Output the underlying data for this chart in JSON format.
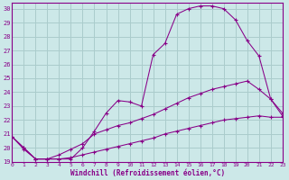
{
  "xlabel": "Windchill (Refroidissement éolien,°C)",
  "background_color": "#cce8e8",
  "grid_color": "#aacccc",
  "line_color": "#880088",
  "xlim": [
    0,
    23
  ],
  "ylim": [
    19,
    30.4
  ],
  "ytick_vals": [
    19,
    20,
    21,
    22,
    23,
    24,
    25,
    26,
    27,
    28,
    29,
    30
  ],
  "xtick_vals": [
    0,
    1,
    2,
    3,
    4,
    5,
    6,
    7,
    8,
    9,
    10,
    11,
    12,
    13,
    14,
    15,
    16,
    17,
    18,
    19,
    20,
    21,
    22,
    23
  ],
  "line1_x": [
    0,
    1,
    2,
    3,
    4,
    5,
    6,
    7,
    8,
    9,
    10,
    11,
    12,
    13,
    14,
    15,
    16,
    17,
    18,
    19,
    20,
    21,
    22,
    23
  ],
  "line1_y": [
    20.8,
    20.0,
    19.2,
    19.2,
    19.2,
    19.3,
    19.5,
    19.7,
    19.9,
    20.1,
    20.3,
    20.5,
    20.7,
    21.0,
    21.2,
    21.4,
    21.6,
    21.8,
    22.0,
    22.1,
    22.2,
    22.3,
    22.2,
    22.2
  ],
  "line2_x": [
    0,
    1,
    2,
    3,
    4,
    5,
    6,
    7,
    8,
    9,
    10,
    11,
    12,
    13,
    14,
    15,
    16,
    17,
    18,
    19,
    20,
    21,
    22,
    23
  ],
  "line2_y": [
    20.8,
    20.0,
    19.2,
    19.2,
    19.5,
    19.9,
    20.3,
    21.0,
    21.3,
    21.6,
    21.8,
    22.1,
    22.4,
    22.8,
    23.2,
    23.6,
    23.9,
    24.2,
    24.4,
    24.6,
    24.8,
    24.2,
    23.5,
    22.5
  ],
  "line3_x": [
    0,
    1,
    2,
    3,
    4,
    5,
    6,
    7,
    8,
    9,
    10,
    11,
    12,
    13,
    14,
    15,
    16,
    17,
    18,
    19,
    20,
    21,
    22,
    23
  ],
  "line3_y": [
    20.8,
    19.9,
    19.2,
    19.2,
    19.2,
    19.2,
    20.0,
    21.2,
    22.5,
    23.4,
    23.3,
    23.0,
    26.7,
    27.5,
    29.6,
    30.0,
    30.2,
    30.2,
    30.0,
    29.2,
    27.7,
    26.6,
    23.5,
    22.3
  ]
}
